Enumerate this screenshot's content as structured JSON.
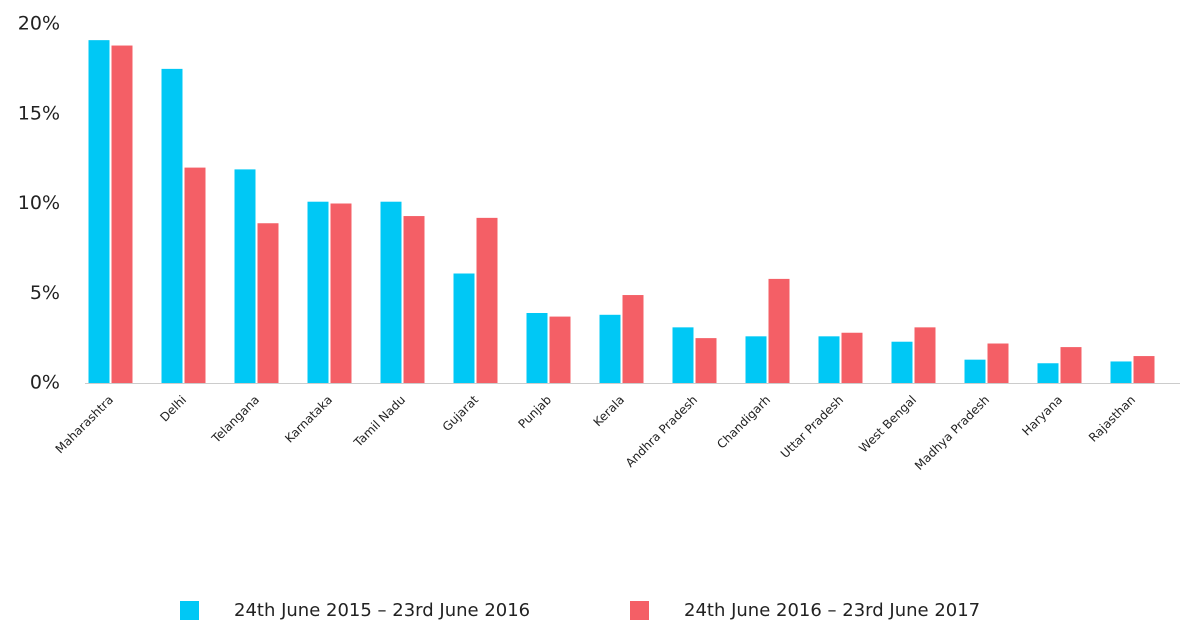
{
  "chart_data": {
    "type": "bar",
    "categories": [
      "Maharashtra",
      "Delhi",
      "Telangana",
      "Karnataka",
      "Tamil Nadu",
      "Gujarat",
      "Punjab",
      "Kerala",
      "Andhra Pradesh",
      "Chandigarh",
      "Uttar Pradesh",
      "West Bengal",
      "Madhya Pradesh",
      "Haryana",
      "Rajasthan"
    ],
    "series": [
      {
        "name": "24th June 2015 – 23rd June 2016",
        "color": "#00c8f5",
        "values": [
          19.1,
          17.5,
          11.9,
          10.1,
          10.1,
          6.1,
          3.9,
          3.8,
          3.1,
          2.6,
          2.6,
          2.3,
          1.3,
          1.1,
          1.2
        ]
      },
      {
        "name": "24th June 2016 – 23rd June 2017",
        "color": "#f45f66",
        "values": [
          18.8,
          12.0,
          8.9,
          10.0,
          9.3,
          9.2,
          3.7,
          4.9,
          2.5,
          5.8,
          2.8,
          3.1,
          2.2,
          2.0,
          1.5
        ]
      }
    ],
    "ylim": [
      0,
      20
    ],
    "yticks": [
      {
        "value": 0,
        "label": "0%"
      },
      {
        "value": 5,
        "label": "5%"
      },
      {
        "value": 10,
        "label": "10%"
      },
      {
        "value": 15,
        "label": "15%"
      },
      {
        "value": 20,
        "label": "20%"
      }
    ],
    "grid": false,
    "legend": "bottom"
  }
}
